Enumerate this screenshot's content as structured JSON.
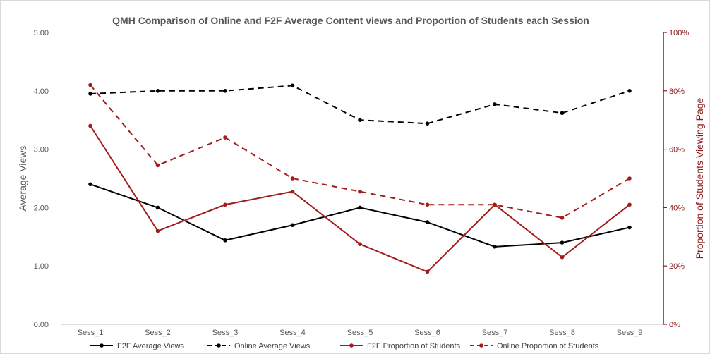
{
  "chart_data": {
    "type": "line",
    "title": "QMH Comparison of Online and F2F Average Content views and Proportion of Students each Session",
    "xlabel": "",
    "ylabel": "Average Views",
    "y2label": "Proportion of Students Viewing Page",
    "categories": [
      "Sess_1",
      "Sess_2",
      "Sess_3",
      "Sess_4",
      "Sess_5",
      "Sess_6",
      "Sess_7",
      "Sess_8",
      "Sess_9"
    ],
    "ylim": [
      0,
      5
    ],
    "y2lim": [
      0,
      1
    ],
    "yticks": [
      "0.00",
      "1.00",
      "2.00",
      "3.00",
      "4.00",
      "5.00"
    ],
    "y2ticks": [
      "0%",
      "20%",
      "40%",
      "60%",
      "80%",
      "100%"
    ],
    "grid": false,
    "legend_position": "bottom",
    "series": [
      {
        "name": "F2F Average Views",
        "axis": "left",
        "color": "#000000",
        "dash": false,
        "values": [
          2.4,
          2.0,
          1.44,
          1.7,
          2.0,
          1.75,
          1.33,
          1.4,
          1.66
        ]
      },
      {
        "name": "Online Average Views",
        "axis": "left",
        "color": "#000000",
        "dash": true,
        "values": [
          3.95,
          4.0,
          4.0,
          4.09,
          3.5,
          3.44,
          3.77,
          3.62,
          4.0
        ]
      },
      {
        "name": "F2F Proportion of Students",
        "axis": "right",
        "color": "#a31b1b",
        "dash": false,
        "values": [
          0.68,
          0.32,
          0.41,
          0.455,
          0.275,
          0.18,
          0.41,
          0.23,
          0.41
        ]
      },
      {
        "name": "Online Proportion of Students",
        "axis": "right",
        "color": "#a31b1b",
        "dash": true,
        "values": [
          0.82,
          0.545,
          0.64,
          0.5,
          0.455,
          0.41,
          0.41,
          0.365,
          0.5
        ]
      }
    ]
  }
}
